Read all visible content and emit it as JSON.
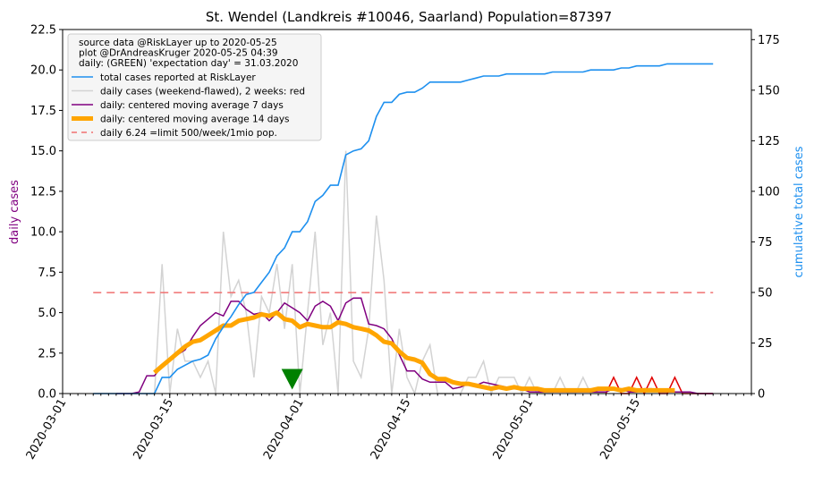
{
  "chart_data": {
    "type": "line",
    "title": "St. Wendel (Landkreis #10046, Saarland) Population=87397",
    "ylabel_left": "daily cases",
    "ylabel_right": "cumulative total cases",
    "xlim": [
      "2020-03-01",
      "2020-05-30"
    ],
    "ylim_left": [
      0,
      22.5
    ],
    "ylim_right": [
      0,
      180
    ],
    "x_ticks": [
      "2020-03-01",
      "2020-03-15",
      "2020-04-01",
      "2020-04-15",
      "2020-05-01",
      "2020-05-15"
    ],
    "y_ticks_left": [
      "0.0",
      "2.5",
      "5.0",
      "7.5",
      "10.0",
      "12.5",
      "15.0",
      "17.5",
      "20.0",
      "22.5"
    ],
    "y_ticks_right": [
      "0",
      "25",
      "50",
      "75",
      "100",
      "125",
      "150",
      "175"
    ],
    "grid": false,
    "legend_position": "top-left",
    "legend_header": [
      "source data @RiskLayer up to 2020-05-25",
      "plot @DrAndreasKruger 2020-05-25 04:39",
      "daily: (GREEN) 'expectation day' = 31.03.2020"
    ],
    "colors": {
      "cumulative": "#1e90ef",
      "daily": "#d3d3d3",
      "daily_recent": "#e00000",
      "ma7": "#800080",
      "ma14": "#ffa500",
      "limit": "#f07070",
      "expectation": "#008000"
    },
    "series": [
      {
        "name": "total cases reported at RiskLayer",
        "axis": "right",
        "x": [
          "2020-03-05",
          "2020-03-06",
          "2020-03-07",
          "2020-03-08",
          "2020-03-09",
          "2020-03-10",
          "2020-03-11",
          "2020-03-12",
          "2020-03-13",
          "2020-03-14",
          "2020-03-15",
          "2020-03-16",
          "2020-03-17",
          "2020-03-18",
          "2020-03-19",
          "2020-03-20",
          "2020-03-21",
          "2020-03-22",
          "2020-03-23",
          "2020-03-24",
          "2020-03-25",
          "2020-03-26",
          "2020-03-27",
          "2020-03-28",
          "2020-03-29",
          "2020-03-30",
          "2020-03-31",
          "2020-04-01",
          "2020-04-02",
          "2020-04-03",
          "2020-04-04",
          "2020-04-05",
          "2020-04-06",
          "2020-04-07",
          "2020-04-08",
          "2020-04-09",
          "2020-04-10",
          "2020-04-11",
          "2020-04-12",
          "2020-04-13",
          "2020-04-14",
          "2020-04-15",
          "2020-04-16",
          "2020-04-17",
          "2020-04-18",
          "2020-04-19",
          "2020-04-20",
          "2020-04-21",
          "2020-04-22",
          "2020-04-23",
          "2020-04-24",
          "2020-04-25",
          "2020-04-26",
          "2020-04-27",
          "2020-04-28",
          "2020-04-29",
          "2020-04-30",
          "2020-05-01",
          "2020-05-02",
          "2020-05-03",
          "2020-05-04",
          "2020-05-05",
          "2020-05-06",
          "2020-05-07",
          "2020-05-08",
          "2020-05-09",
          "2020-05-10",
          "2020-05-11",
          "2020-05-12",
          "2020-05-13",
          "2020-05-14",
          "2020-05-15",
          "2020-05-16",
          "2020-05-17",
          "2020-05-18",
          "2020-05-19",
          "2020-05-20",
          "2020-05-21",
          "2020-05-22",
          "2020-05-23",
          "2020-05-24",
          "2020-05-25"
        ],
        "values": [
          0,
          0,
          0,
          0,
          0,
          0,
          0,
          0,
          0,
          8,
          8,
          12,
          14,
          16,
          17,
          19,
          27,
          33,
          38,
          44,
          49,
          50,
          55,
          60,
          68,
          72,
          80,
          80,
          85,
          95,
          98,
          103,
          103,
          118,
          120,
          121,
          125,
          137,
          144,
          144,
          148,
          149,
          149,
          151,
          154,
          154,
          154,
          154,
          154,
          155,
          156,
          157,
          157,
          157,
          158,
          158,
          158,
          158,
          158,
          158,
          159,
          159,
          159,
          159,
          159,
          160,
          160,
          160,
          160,
          161,
          161,
          162,
          162,
          162,
          162,
          163,
          163,
          163,
          163,
          163,
          163,
          163
        ]
      },
      {
        "name": "daily cases (weekend-flawed), 2 weeks: red",
        "axis": "left",
        "x": [
          "2020-03-05",
          "2020-03-06",
          "2020-03-07",
          "2020-03-08",
          "2020-03-09",
          "2020-03-10",
          "2020-03-11",
          "2020-03-12",
          "2020-03-13",
          "2020-03-14",
          "2020-03-15",
          "2020-03-16",
          "2020-03-17",
          "2020-03-18",
          "2020-03-19",
          "2020-03-20",
          "2020-03-21",
          "2020-03-22",
          "2020-03-23",
          "2020-03-24",
          "2020-03-25",
          "2020-03-26",
          "2020-03-27",
          "2020-03-28",
          "2020-03-29",
          "2020-03-30",
          "2020-03-31",
          "2020-04-01",
          "2020-04-02",
          "2020-04-03",
          "2020-04-04",
          "2020-04-05",
          "2020-04-06",
          "2020-04-07",
          "2020-04-08",
          "2020-04-09",
          "2020-04-10",
          "2020-04-11",
          "2020-04-12",
          "2020-04-13",
          "2020-04-14",
          "2020-04-15",
          "2020-04-16",
          "2020-04-17",
          "2020-04-18",
          "2020-04-19",
          "2020-04-20",
          "2020-04-21",
          "2020-04-22",
          "2020-04-23",
          "2020-04-24",
          "2020-04-25",
          "2020-04-26",
          "2020-04-27",
          "2020-04-28",
          "2020-04-29",
          "2020-04-30",
          "2020-05-01",
          "2020-05-02",
          "2020-05-03",
          "2020-05-04",
          "2020-05-05",
          "2020-05-06",
          "2020-05-07",
          "2020-05-08",
          "2020-05-09",
          "2020-05-10",
          "2020-05-11",
          "2020-05-12",
          "2020-05-13",
          "2020-05-14",
          "2020-05-15",
          "2020-05-16",
          "2020-05-17",
          "2020-05-18",
          "2020-05-19",
          "2020-05-20",
          "2020-05-21",
          "2020-05-22",
          "2020-05-23",
          "2020-05-24",
          "2020-05-25"
        ],
        "values": [
          0,
          0,
          0,
          0,
          0,
          0,
          0,
          0,
          0,
          8,
          0,
          4,
          2,
          2,
          1,
          2,
          0,
          10,
          6,
          7,
          5,
          1,
          6,
          5,
          8,
          4,
          8,
          0,
          5,
          10,
          3,
          5,
          0,
          15,
          2,
          1,
          4,
          11,
          7,
          0,
          4,
          1,
          0,
          2,
          3,
          0,
          0,
          0,
          0,
          1,
          1,
          2,
          0,
          1,
          1,
          1,
          0,
          1,
          0,
          0,
          0,
          1,
          0,
          0,
          1,
          0,
          0,
          0,
          1,
          0,
          0,
          1,
          0,
          1,
          0,
          0,
          1,
          0,
          0,
          0,
          0,
          0
        ],
        "red_from": "2020-05-11"
      },
      {
        "name": "daily: centered moving average 7 days",
        "axis": "left",
        "x": [
          "2020-03-08",
          "2020-03-09",
          "2020-03-10",
          "2020-03-11",
          "2020-03-12",
          "2020-03-13",
          "2020-03-14",
          "2020-03-15",
          "2020-03-16",
          "2020-03-17",
          "2020-03-18",
          "2020-03-19",
          "2020-03-20",
          "2020-03-21",
          "2020-03-22",
          "2020-03-23",
          "2020-03-24",
          "2020-03-25",
          "2020-03-26",
          "2020-03-27",
          "2020-03-28",
          "2020-03-29",
          "2020-03-30",
          "2020-03-31",
          "2020-04-01",
          "2020-04-02",
          "2020-04-03",
          "2020-04-04",
          "2020-04-05",
          "2020-04-06",
          "2020-04-07",
          "2020-04-08",
          "2020-04-09",
          "2020-04-10",
          "2020-04-11",
          "2020-04-12",
          "2020-04-13",
          "2020-04-14",
          "2020-04-15",
          "2020-04-16",
          "2020-04-17",
          "2020-04-18",
          "2020-04-19",
          "2020-04-20",
          "2020-04-21",
          "2020-04-22",
          "2020-04-23",
          "2020-04-24",
          "2020-04-25",
          "2020-04-26",
          "2020-04-27",
          "2020-04-28",
          "2020-04-29",
          "2020-04-30",
          "2020-05-01",
          "2020-05-02",
          "2020-05-03",
          "2020-05-04",
          "2020-05-05",
          "2020-05-06",
          "2020-05-07",
          "2020-05-08",
          "2020-05-09",
          "2020-05-10",
          "2020-05-11",
          "2020-05-12",
          "2020-05-13",
          "2020-05-14",
          "2020-05-15",
          "2020-05-16",
          "2020-05-17",
          "2020-05-18",
          "2020-05-19",
          "2020-05-20",
          "2020-05-21",
          "2020-05-22",
          "2020-05-23",
          "2020-05-24",
          "2020-05-25"
        ],
        "values": [
          0,
          0,
          0,
          0.1,
          1.1,
          1.1,
          1.7,
          2.1,
          2.4,
          2.7,
          3.5,
          4.2,
          4.6,
          5.0,
          4.8,
          5.7,
          5.7,
          5.2,
          4.9,
          5.0,
          4.5,
          5.0,
          5.6,
          5.3,
          5.0,
          4.5,
          5.4,
          5.7,
          5.4,
          4.5,
          5.6,
          5.9,
          5.9,
          4.3,
          4.2,
          4.0,
          3.4,
          2.4,
          1.4,
          1.4,
          0.9,
          0.7,
          0.7,
          0.7,
          0.3,
          0.4,
          0.6,
          0.5,
          0.7,
          0.6,
          0.5,
          0.4,
          0.3,
          0.3,
          0.1,
          0.1,
          0.1,
          0.1,
          0.1,
          0.1,
          0.1,
          0.1,
          0.1,
          0.1,
          0.1,
          0.3,
          0.3,
          0.1,
          0.1,
          0.3,
          0.3,
          0.1,
          0.1,
          0.1,
          0.1,
          0.1,
          0,
          0,
          0
        ]
      },
      {
        "name": "daily: centered moving average 14 days",
        "axis": "left",
        "x": [
          "2020-03-13",
          "2020-03-14",
          "2020-03-15",
          "2020-03-16",
          "2020-03-17",
          "2020-03-18",
          "2020-03-19",
          "2020-03-20",
          "2020-03-21",
          "2020-03-22",
          "2020-03-23",
          "2020-03-24",
          "2020-03-25",
          "2020-03-26",
          "2020-03-27",
          "2020-03-28",
          "2020-03-29",
          "2020-03-30",
          "2020-03-31",
          "2020-04-01",
          "2020-04-02",
          "2020-04-03",
          "2020-04-04",
          "2020-04-05",
          "2020-04-06",
          "2020-04-07",
          "2020-04-08",
          "2020-04-09",
          "2020-04-10",
          "2020-04-11",
          "2020-04-12",
          "2020-04-13",
          "2020-04-14",
          "2020-04-15",
          "2020-04-16",
          "2020-04-17",
          "2020-04-18",
          "2020-04-19",
          "2020-04-20",
          "2020-04-21",
          "2020-04-22",
          "2020-04-23",
          "2020-04-24",
          "2020-04-25",
          "2020-04-26",
          "2020-04-27",
          "2020-04-28",
          "2020-04-29",
          "2020-04-30",
          "2020-05-01",
          "2020-05-02",
          "2020-05-03",
          "2020-05-04",
          "2020-05-05",
          "2020-05-06",
          "2020-05-07",
          "2020-05-08",
          "2020-05-09",
          "2020-05-10",
          "2020-05-11",
          "2020-05-12",
          "2020-05-13",
          "2020-05-14",
          "2020-05-15",
          "2020-05-16",
          "2020-05-17",
          "2020-05-18",
          "2020-05-19",
          "2020-05-20"
        ],
        "values": [
          1.3,
          1.7,
          2.1,
          2.5,
          2.9,
          3.2,
          3.3,
          3.6,
          3.9,
          4.2,
          4.2,
          4.5,
          4.6,
          4.7,
          4.9,
          4.8,
          5.0,
          4.6,
          4.5,
          4.1,
          4.3,
          4.2,
          4.1,
          4.1,
          4.4,
          4.3,
          4.1,
          4.0,
          3.9,
          3.6,
          3.2,
          3.1,
          2.6,
          2.2,
          2.1,
          1.9,
          1.2,
          0.9,
          0.9,
          0.7,
          0.6,
          0.6,
          0.5,
          0.4,
          0.3,
          0.4,
          0.3,
          0.4,
          0.3,
          0.3,
          0.3,
          0.2,
          0.2,
          0.2,
          0.2,
          0.2,
          0.2,
          0.2,
          0.3,
          0.3,
          0.3,
          0.2,
          0.3,
          0.2,
          0.2,
          0.2,
          0.2,
          0.2,
          0.2
        ]
      },
      {
        "name": "daily 6.24 =limit 500/week/1mio pop.",
        "axis": "left",
        "x": [
          "2020-03-05",
          "2020-05-25"
        ],
        "values": [
          6.24,
          6.24
        ]
      }
    ],
    "annotations": [
      {
        "type": "marker",
        "shape": "down-triangle",
        "x": "2020-03-31",
        "y": 0.8
      }
    ]
  }
}
